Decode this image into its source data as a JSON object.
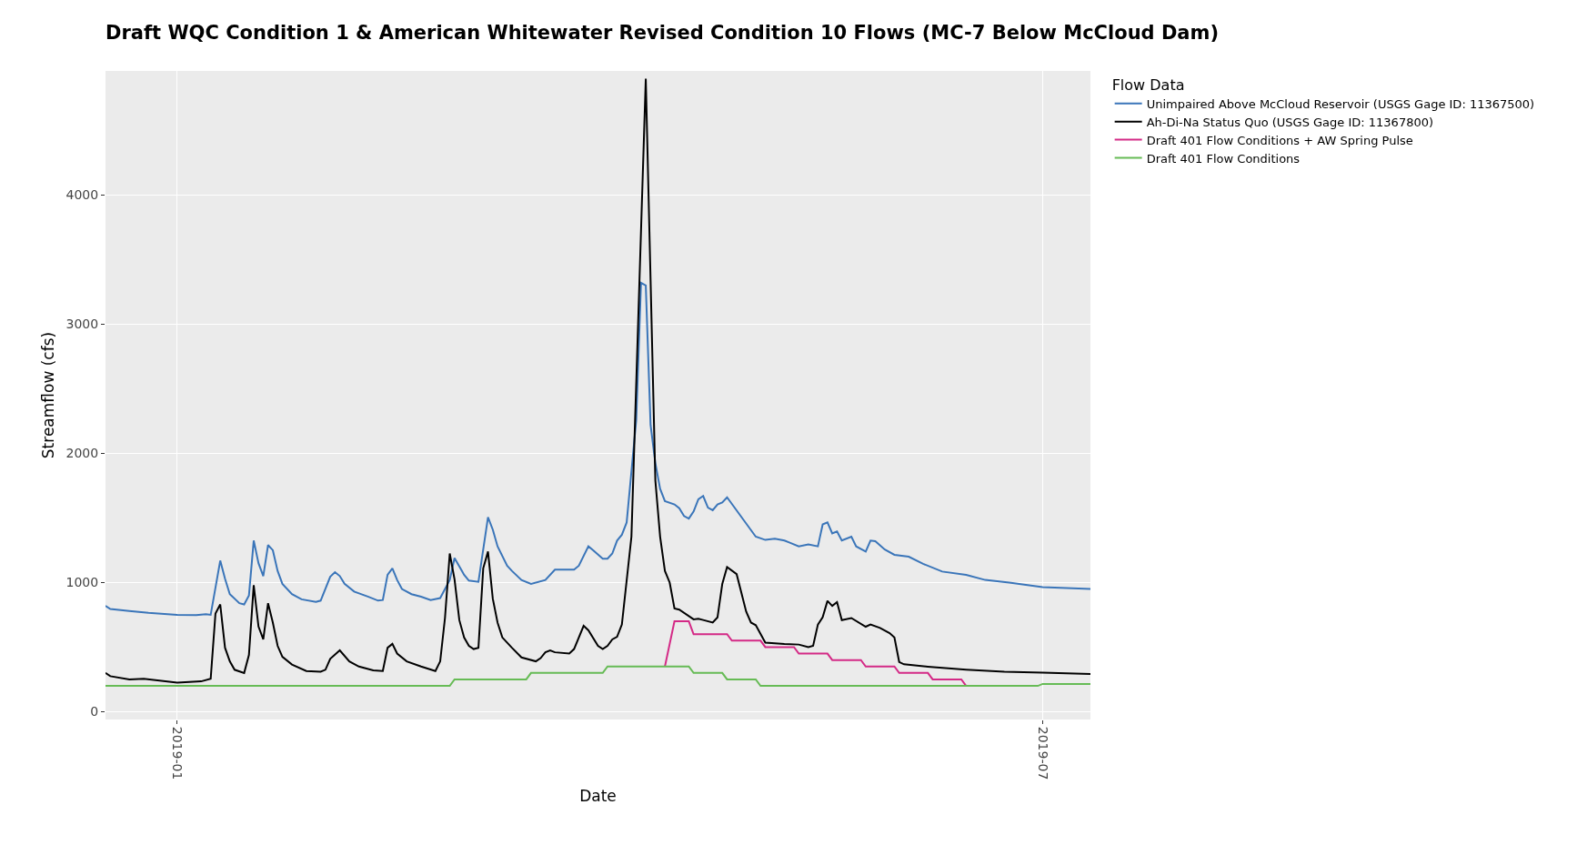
{
  "chart_data": {
    "type": "line",
    "title": "Draft WQC Condition 1 & American Whitewater Revised Condition 10 Flows (MC-7 Below McCloud Dam)",
    "xlabel": "Date",
    "ylabel": "Streamflow (cfs)",
    "legend_title": "Flow Data",
    "legend": "top right",
    "grid": true,
    "marker": "none",
    "line_style": "solid",
    "xlim": [
      "2018-12-17",
      "2019-07-11"
    ],
    "xticks": [
      {
        "value": "2019-01-01",
        "label": "2019-01"
      },
      {
        "value": "2019-07-01",
        "label": "2019-07"
      }
    ],
    "ylim": [
      -60,
      4960
    ],
    "yticks": [
      0,
      1000,
      2000,
      3000,
      4000
    ],
    "series": [
      {
        "name": "Unimpaired Above McCloud Reservoir (USGS Gage ID: 11367500)",
        "color": "#3a75b9",
        "x": [
          "2018-12-17",
          "2018-12-18",
          "2018-12-22",
          "2018-12-26",
          "2019-01-01",
          "2019-01-05",
          "2019-01-07",
          "2019-01-08",
          "2019-01-10",
          "2019-01-11",
          "2019-01-12",
          "2019-01-14",
          "2019-01-15",
          "2019-01-16",
          "2019-01-17",
          "2019-01-18",
          "2019-01-19",
          "2019-01-20",
          "2019-01-21",
          "2019-01-22",
          "2019-01-23",
          "2019-01-25",
          "2019-01-27",
          "2019-01-30",
          "2019-01-31",
          "2019-02-02",
          "2019-02-03",
          "2019-02-04",
          "2019-02-05",
          "2019-02-07",
          "2019-02-10",
          "2019-02-12",
          "2019-02-13",
          "2019-02-14",
          "2019-02-15",
          "2019-02-16",
          "2019-02-17",
          "2019-02-19",
          "2019-02-21",
          "2019-02-23",
          "2019-02-25",
          "2019-02-27",
          "2019-02-28",
          "2019-03-02",
          "2019-03-03",
          "2019-03-05",
          "2019-03-07",
          "2019-03-08",
          "2019-03-09",
          "2019-03-11",
          "2019-03-12",
          "2019-03-14",
          "2019-03-16",
          "2019-03-19",
          "2019-03-21",
          "2019-03-25",
          "2019-03-26",
          "2019-03-28",
          "2019-03-29",
          "2019-03-31",
          "2019-04-01",
          "2019-04-02",
          "2019-04-03",
          "2019-04-04",
          "2019-04-05",
          "2019-04-07",
          "2019-04-08",
          "2019-04-09",
          "2019-04-10",
          "2019-04-11",
          "2019-04-12",
          "2019-04-13",
          "2019-04-15",
          "2019-04-16",
          "2019-04-17",
          "2019-04-18",
          "2019-04-19",
          "2019-04-20",
          "2019-04-21",
          "2019-04-22",
          "2019-04-23",
          "2019-04-24",
          "2019-04-25",
          "2019-04-26",
          "2019-05-02",
          "2019-05-04",
          "2019-05-06",
          "2019-05-08",
          "2019-05-09",
          "2019-05-11",
          "2019-05-13",
          "2019-05-15",
          "2019-05-16",
          "2019-05-17",
          "2019-05-18",
          "2019-05-19",
          "2019-05-20",
          "2019-05-22",
          "2019-05-23",
          "2019-05-25",
          "2019-05-26",
          "2019-05-27",
          "2019-05-29",
          "2019-05-31",
          "2019-06-03",
          "2019-06-06",
          "2019-06-10",
          "2019-06-15",
          "2019-06-19",
          "2019-06-24",
          "2019-07-01",
          "2019-07-11"
        ],
        "values": [
          820,
          795,
          780,
          765,
          750,
          748,
          755,
          750,
          1170,
          1030,
          910,
          840,
          830,
          900,
          1325,
          1150,
          1050,
          1290,
          1250,
          1090,
          990,
          910,
          870,
          850,
          860,
          1045,
          1080,
          1050,
          990,
          930,
          890,
          860,
          865,
          1060,
          1110,
          1020,
          950,
          910,
          890,
          865,
          880,
          1020,
          1190,
          1060,
          1015,
          1005,
          1505,
          1410,
          1280,
          1130,
          1090,
          1020,
          990,
          1020,
          1100,
          1100,
          1130,
          1280,
          1250,
          1185,
          1185,
          1225,
          1325,
          1370,
          1465,
          2255,
          3320,
          3300,
          2220,
          1925,
          1725,
          1630,
          1605,
          1575,
          1515,
          1495,
          1550,
          1645,
          1670,
          1580,
          1560,
          1605,
          1620,
          1660,
          1355,
          1330,
          1340,
          1325,
          1310,
          1280,
          1295,
          1280,
          1450,
          1465,
          1380,
          1395,
          1325,
          1355,
          1280,
          1240,
          1325,
          1320,
          1255,
          1215,
          1200,
          1145,
          1085,
          1060,
          1020,
          1000,
          965,
          950
        ]
      },
      {
        "name": "Ah-Di-Na Status Quo (USGS Gage ID: 11367800)",
        "color": "#000000",
        "x": [
          "2018-12-17",
          "2018-12-18",
          "2018-12-22",
          "2018-12-25",
          "2019-01-01",
          "2019-01-06",
          "2019-01-08",
          "2019-01-09",
          "2019-01-10",
          "2019-01-11",
          "2019-01-12",
          "2019-01-13",
          "2019-01-15",
          "2019-01-16",
          "2019-01-17",
          "2019-01-18",
          "2019-01-19",
          "2019-01-20",
          "2019-01-21",
          "2019-01-22",
          "2019-01-23",
          "2019-01-25",
          "2019-01-28",
          "2019-01-31",
          "2019-02-01",
          "2019-02-02",
          "2019-02-04",
          "2019-02-06",
          "2019-02-08",
          "2019-02-11",
          "2019-02-13",
          "2019-02-14",
          "2019-02-15",
          "2019-02-16",
          "2019-02-18",
          "2019-02-21",
          "2019-02-24",
          "2019-02-25",
          "2019-02-26",
          "2019-02-27",
          "2019-02-28",
          "2019-03-01",
          "2019-03-02",
          "2019-03-03",
          "2019-03-04",
          "2019-03-05",
          "2019-03-06",
          "2019-03-07",
          "2019-03-08",
          "2019-03-09",
          "2019-03-10",
          "2019-03-12",
          "2019-03-14",
          "2019-03-17",
          "2019-03-18",
          "2019-03-19",
          "2019-03-20",
          "2019-03-21",
          "2019-03-24",
          "2019-03-25",
          "2019-03-27",
          "2019-03-28",
          "2019-03-30",
          "2019-03-31",
          "2019-04-01",
          "2019-04-02",
          "2019-04-03",
          "2019-04-04",
          "2019-04-06",
          "2019-04-09",
          "2019-04-11",
          "2019-04-12",
          "2019-04-13",
          "2019-04-14",
          "2019-04-15",
          "2019-04-16",
          "2019-04-19",
          "2019-04-20",
          "2019-04-21",
          "2019-04-23",
          "2019-04-24",
          "2019-04-25",
          "2019-04-26",
          "2019-04-28",
          "2019-04-30",
          "2019-05-01",
          "2019-05-02",
          "2019-05-04",
          "2019-05-08",
          "2019-05-11",
          "2019-05-13",
          "2019-05-14",
          "2019-05-15",
          "2019-05-16",
          "2019-05-17",
          "2019-05-18",
          "2019-05-19",
          "2019-05-20",
          "2019-05-22",
          "2019-05-25",
          "2019-05-26",
          "2019-05-28",
          "2019-05-30",
          "2019-05-31",
          "2019-06-01",
          "2019-06-02",
          "2019-06-07",
          "2019-06-15",
          "2019-06-23",
          "2019-07-01",
          "2019-07-11"
        ],
        "values": [
          300,
          275,
          250,
          255,
          225,
          235,
          255,
          760,
          830,
          495,
          390,
          325,
          300,
          440,
          980,
          660,
          560,
          840,
          690,
          510,
          425,
          365,
          315,
          310,
          325,
          410,
          475,
          390,
          350,
          320,
          315,
          495,
          525,
          450,
          390,
          350,
          315,
          390,
          725,
          1225,
          1025,
          710,
          575,
          510,
          485,
          495,
          1110,
          1240,
          875,
          690,
          575,
          495,
          420,
          390,
          415,
          460,
          475,
          460,
          450,
          485,
          665,
          630,
          510,
          485,
          510,
          560,
          580,
          675,
          1355,
          4900,
          1790,
          1355,
          1090,
          1000,
          800,
          790,
          715,
          720,
          710,
          690,
          730,
          990,
          1120,
          1065,
          775,
          690,
          670,
          535,
          525,
          520,
          500,
          510,
          675,
          732,
          858,
          819,
          848,
          709,
          725,
          658,
          675,
          649,
          608,
          575,
          385,
          367,
          349,
          326,
          309,
          302,
          292
        ]
      },
      {
        "name": "Draft 401 Flow Conditions + AW Spring Pulse",
        "color": "#d42a86",
        "x": [
          "2019-04-13",
          "2019-04-15",
          "2019-04-18",
          "2019-04-19",
          "2019-04-26",
          "2019-04-27",
          "2019-05-03",
          "2019-05-04",
          "2019-05-10",
          "2019-05-11",
          "2019-05-17",
          "2019-05-18",
          "2019-05-24",
          "2019-05-25",
          "2019-05-31",
          "2019-06-01",
          "2019-06-07",
          "2019-06-08",
          "2019-06-14",
          "2019-06-15"
        ],
        "values": [
          350,
          700,
          700,
          600,
          600,
          550,
          550,
          500,
          500,
          450,
          450,
          400,
          400,
          350,
          350,
          300,
          300,
          250,
          250,
          200
        ]
      },
      {
        "name": "Draft 401 Flow Conditions",
        "color": "#66bb55",
        "x": [
          "2018-12-17",
          "2019-02-27",
          "2019-02-28",
          "2019-03-15",
          "2019-03-16",
          "2019-03-31",
          "2019-04-01",
          "2019-04-18",
          "2019-04-19",
          "2019-04-25",
          "2019-04-26",
          "2019-05-02",
          "2019-05-03",
          "2019-06-30",
          "2019-07-01",
          "2019-07-11"
        ],
        "values": [
          200,
          200,
          250,
          250,
          300,
          300,
          350,
          350,
          300,
          300,
          250,
          250,
          200,
          200,
          215,
          215
        ]
      }
    ]
  }
}
